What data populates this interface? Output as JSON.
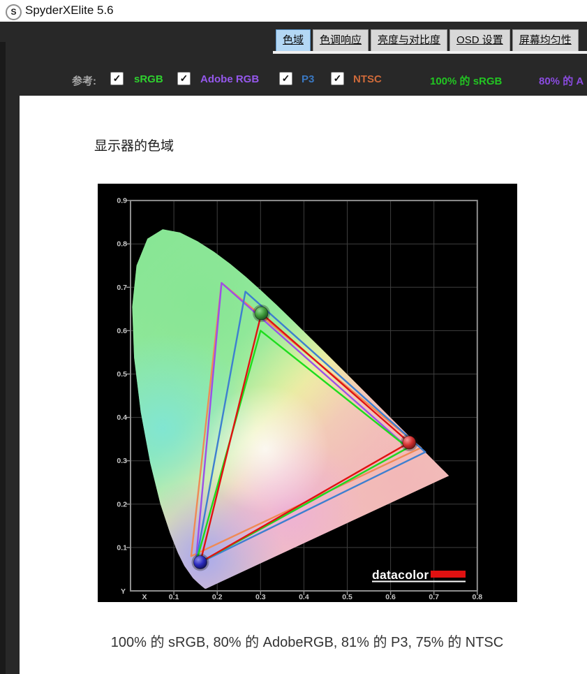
{
  "app": {
    "title": "SpyderXElite 5.6",
    "icon_glyph": "S"
  },
  "tabs": [
    {
      "label": "色域",
      "selected": true
    },
    {
      "label": "色调响应",
      "selected": false
    },
    {
      "label": "亮度与对比度",
      "selected": false
    },
    {
      "label": "OSD 设置",
      "selected": false
    },
    {
      "label": "屏幕均匀性",
      "selected": false
    }
  ],
  "reference_bar": {
    "label": "参考:",
    "checkboxes": [
      {
        "label": "sRGB",
        "checked": true,
        "color": "#2fd12f"
      },
      {
        "label": "Adobe RGB",
        "checked": true,
        "color": "#9558ec"
      },
      {
        "label": "P3",
        "checked": true,
        "color": "#3a78c2"
      },
      {
        "label": "NTSC",
        "checked": true,
        "color": "#cf6a3a"
      }
    ],
    "results": [
      {
        "text": "100% 的 sRGB",
        "color": "#22c522"
      },
      {
        "text": "80% 的 A",
        "color": "#8a4be0"
      }
    ]
  },
  "content": {
    "heading": "显示器的色域",
    "result_line": "100% 的 sRGB, 80% 的 AdobeRGB, 81% 的 P3, 75% 的 NTSC"
  },
  "chart_data": {
    "type": "scatter",
    "subtype": "CIE-1931-chromaticity-gamut",
    "title": "显示器的色域",
    "xlabel": "X",
    "ylabel": "Y",
    "xlim": [
      0,
      0.8
    ],
    "ylim": [
      0,
      0.9
    ],
    "x_ticks": [
      "0.1",
      "0.2",
      "0.3",
      "0.4",
      "0.5",
      "0.6",
      "0.7",
      "0.8"
    ],
    "y_ticks": [
      "0.1",
      "0.2",
      "0.3",
      "0.4",
      "0.5",
      "0.6",
      "0.7",
      "0.8",
      "0.9"
    ],
    "grid": true,
    "background": "#000000",
    "watermark": "datacolor",
    "series": [
      {
        "name": "NTSC",
        "color": "#ef8a55",
        "markers": false,
        "primaries": {
          "red": [
            0.67,
            0.33
          ],
          "green": [
            0.21,
            0.71
          ],
          "blue": [
            0.14,
            0.08
          ]
        }
      },
      {
        "name": "Adobe RGB",
        "color": "#9b4fe8",
        "markers": false,
        "primaries": {
          "red": [
            0.64,
            0.33
          ],
          "green": [
            0.21,
            0.71
          ],
          "blue": [
            0.15,
            0.06
          ]
        }
      },
      {
        "name": "P3",
        "color": "#3d7fd0",
        "markers": false,
        "primaries": {
          "red": [
            0.68,
            0.32
          ],
          "green": [
            0.265,
            0.69
          ],
          "blue": [
            0.15,
            0.06
          ]
        }
      },
      {
        "name": "sRGB",
        "color": "#1ddd1d",
        "markers": false,
        "primaries": {
          "red": [
            0.64,
            0.33
          ],
          "green": [
            0.3,
            0.6
          ],
          "blue": [
            0.15,
            0.06
          ]
        }
      },
      {
        "name": "显示器",
        "color": "#e01212",
        "markers": true,
        "primaries": {
          "red": [
            0.643,
            0.342
          ],
          "green": [
            0.302,
            0.64
          ],
          "blue": [
            0.161,
            0.066
          ]
        }
      }
    ],
    "coverage": {
      "sRGB": "100%",
      "AdobeRGB": "80%",
      "P3": "81%",
      "NTSC": "75%"
    }
  }
}
